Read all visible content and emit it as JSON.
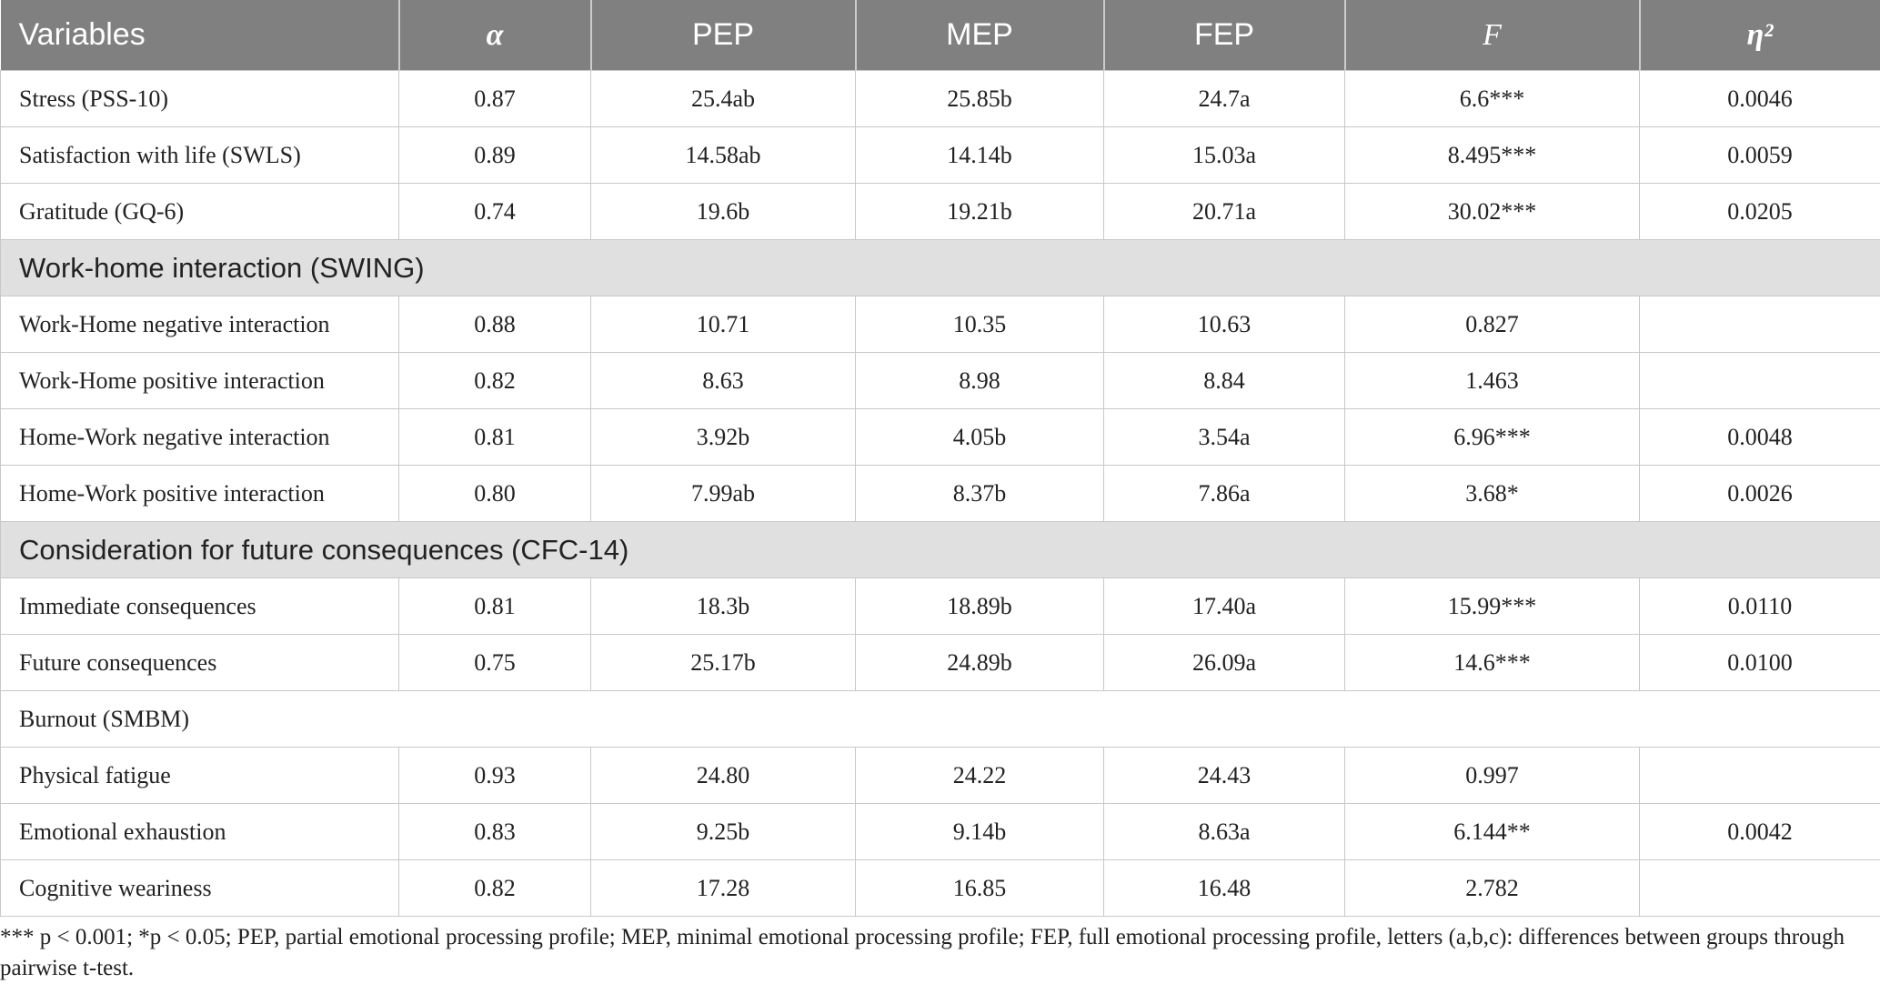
{
  "table": {
    "header": [
      "Variables",
      "α",
      "PEP",
      "MEP",
      "FEP",
      "F",
      "η²"
    ],
    "rows": [
      {
        "cells": [
          "Stress (PSS-10)",
          "0.87",
          "25.4ab",
          "25.85b",
          "24.7a",
          "6.6***",
          "0.0046"
        ]
      },
      {
        "cells": [
          "Satisfaction with life (SWLS)",
          "0.89",
          "14.58ab",
          "14.14b",
          "15.03a",
          "8.495***",
          "0.0059"
        ]
      },
      {
        "cells": [
          "Gratitude (GQ-6)",
          "0.74",
          "19.6b",
          "19.21b",
          "20.71a",
          "30.02***",
          "0.0205"
        ]
      },
      {
        "section": "Work-home interaction (SWING)"
      },
      {
        "cells": [
          "Work-Home negative interaction",
          "0.88",
          "10.71",
          "10.35",
          "10.63",
          "0.827",
          null
        ]
      },
      {
        "cells": [
          "Work-Home positive interaction",
          "0.82",
          "8.63",
          "8.98",
          "8.84",
          "1.463",
          null
        ]
      },
      {
        "cells": [
          "Home-Work negative interaction",
          "0.81",
          "3.92b",
          "4.05b",
          "3.54a",
          "6.96***",
          "0.0048"
        ]
      },
      {
        "cells": [
          "Home-Work positive interaction",
          "0.80",
          "7.99ab",
          "8.37b",
          "7.86a",
          "3.68*",
          "0.0026"
        ]
      },
      {
        "section": "Consideration for future consequences (CFC-14)"
      },
      {
        "cells": [
          "Immediate consequences",
          "0.81",
          "18.3b",
          "18.89b",
          "17.40a",
          "15.99***",
          "0.0110"
        ]
      },
      {
        "cells": [
          "Future consequences",
          "0.75",
          "25.17b",
          "24.89b",
          "26.09a",
          "14.6***",
          "0.0100"
        ]
      },
      {
        "subheading": "Burnout (SMBM)"
      },
      {
        "cells": [
          "Physical fatigue",
          "0.93",
          "24.80",
          "24.22",
          "24.43",
          "0.997",
          null
        ]
      },
      {
        "cells": [
          "Emotional exhaustion",
          "0.83",
          "9.25b",
          "9.14b",
          "8.63a",
          "6.144**",
          "0.0042"
        ]
      },
      {
        "cells": [
          "Cognitive weariness",
          "0.82",
          "17.28",
          "16.85",
          "16.48",
          "2.782",
          null
        ]
      }
    ]
  },
  "footnote": "*** p < 0.001; *p < 0.05; PEP, partial emotional processing profile; MEP, minimal emotional processing profile; FEP, full emotional processing profile, letters (a,b,c): differences between groups through pairwise t-test."
}
